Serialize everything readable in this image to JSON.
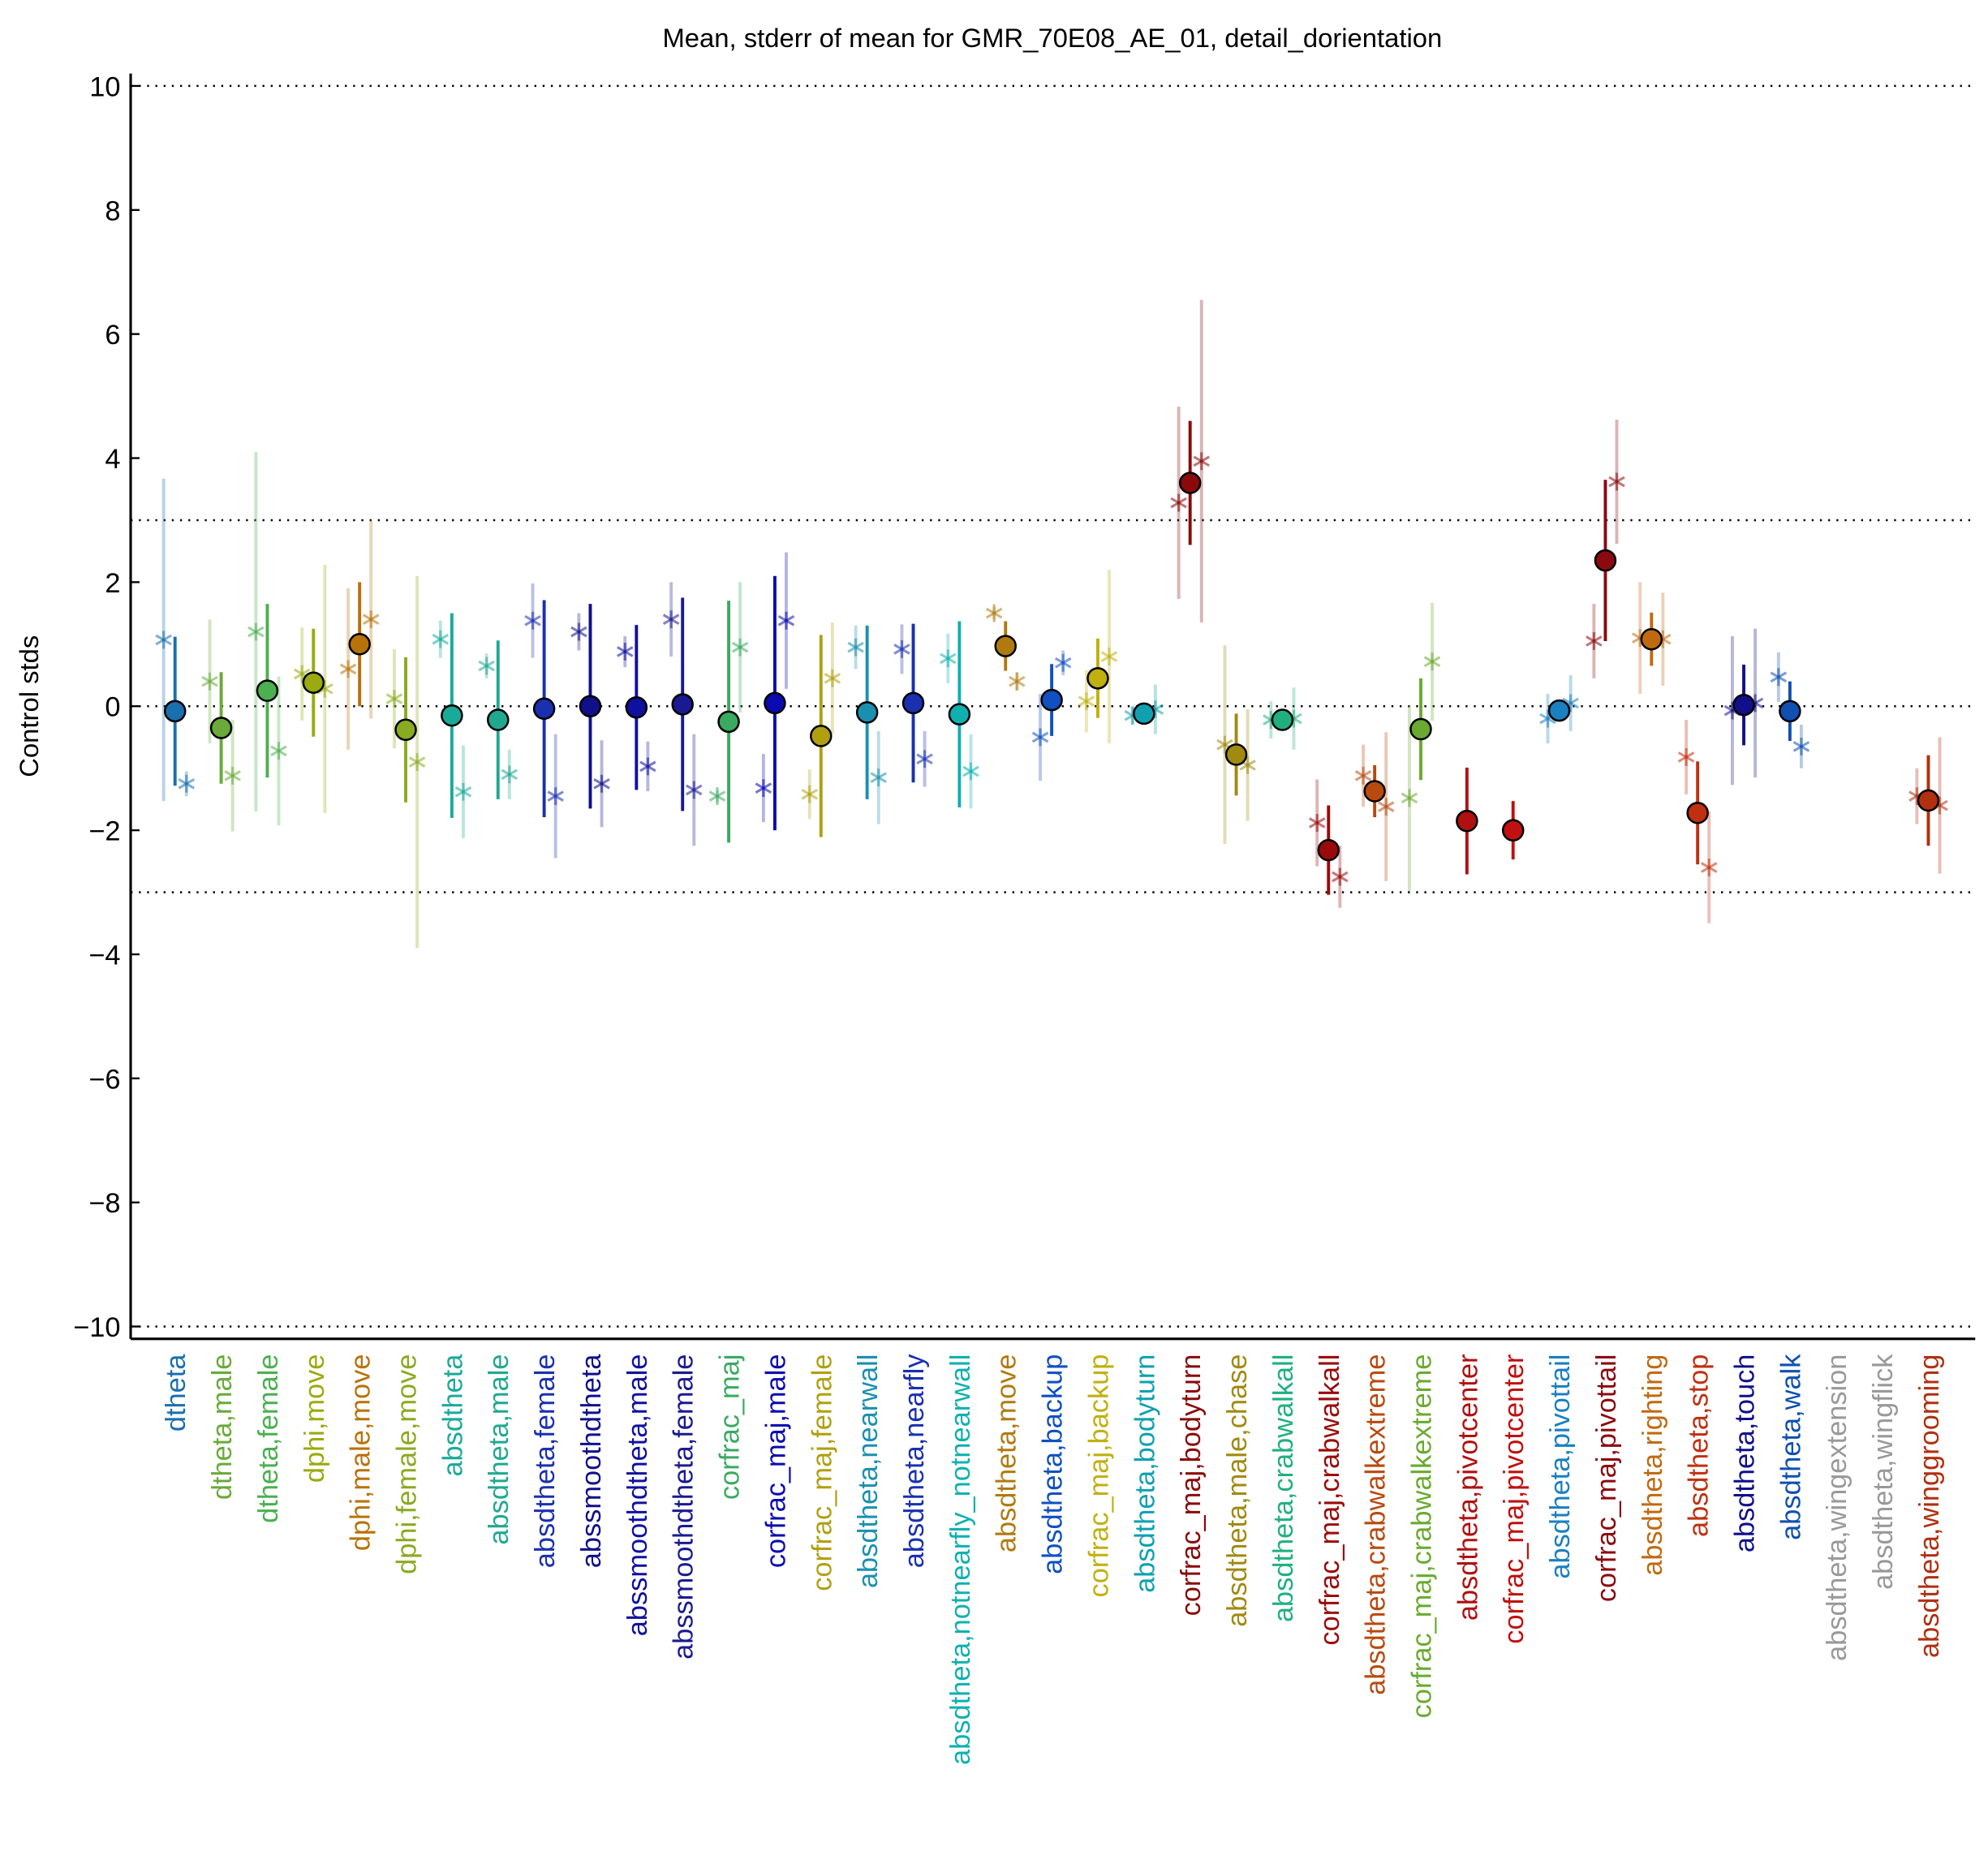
{
  "chart_data": {
    "type": "errorbar",
    "title": "Mean, stderr of mean for GMR_70E08_AE_01, detail_dorientation",
    "ylabel": "Control stds",
    "categories": [
      "dtheta",
      "dtheta,male",
      "dtheta,female",
      "dphi,move",
      "dphi,male,move",
      "dphi,female,move",
      "absdtheta",
      "absdtheta,male",
      "absdtheta,female",
      "abssmoothdtheta",
      "abssmoothdtheta,male",
      "abssmoothdtheta,female",
      "corfrac_maj",
      "corfrac_maj,male",
      "corfrac_maj,female",
      "absdtheta,nearwall",
      "absdtheta,nearfly",
      "absdtheta,notnearfly_notnearwall",
      "absdtheta,move",
      "absdtheta,backup",
      "corfrac_maj,backup",
      "absdtheta,bodyturn",
      "corfrac_maj,bodyturn",
      "absdtheta,male,chase",
      "absdtheta,crabwalkall",
      "corfrac_maj,crabwalkall",
      "absdtheta,crabwalkextreme",
      "corfrac_maj,crabwalkextreme",
      "absdtheta,pivotcenter",
      "corfrac_maj,pivotcenter",
      "absdtheta,pivottail",
      "corfrac_maj,pivottail",
      "absdtheta,righting",
      "absdtheta,stop",
      "absdtheta,touch",
      "absdtheta,walk",
      "absdtheta,wingextension",
      "absdtheta,wingflick",
      "absdtheta,winggrooming"
    ],
    "colors": [
      "#1a6faf",
      "#6aaa3a",
      "#4caf50",
      "#9aaa10",
      "#b8720a",
      "#8aaa20",
      "#1aaa98",
      "#20a890",
      "#1a30b0",
      "#10108a",
      "#1010a0",
      "#1a1a90",
      "#3aaa60",
      "#0a0ab0",
      "#b0a010",
      "#1a90b0",
      "#1a30b0",
      "#10b0b0",
      "#b07a10",
      "#1050c0",
      "#c0b010",
      "#10a0b0",
      "#8a0a0a",
      "#a08a10",
      "#20b080",
      "#9a0a0a",
      "#b84a10",
      "#6aaa30",
      "#b01010",
      "#c01010",
      "#1a80c0",
      "#8a0a10",
      "#c06a10",
      "#c03010",
      "#10108a",
      "#1050b0",
      "#999999",
      "#999999",
      "#b03010"
    ],
    "values": [
      -0.08,
      -0.35,
      0.25,
      0.38,
      1.0,
      -0.38,
      -0.15,
      -0.22,
      -0.04,
      0.0,
      -0.02,
      0.03,
      -0.25,
      0.05,
      -0.48,
      -0.1,
      0.05,
      -0.13,
      0.97,
      0.1,
      0.45,
      -0.12,
      3.6,
      -0.78,
      -0.22,
      -2.32,
      -1.37,
      -0.37,
      -1.85,
      -2.0,
      -0.07,
      2.35,
      1.08,
      -1.72,
      0.02,
      -0.08,
      null,
      null,
      -1.52
    ],
    "errors": [
      1.2,
      0.9,
      1.4,
      0.87,
      1.0,
      1.17,
      1.65,
      1.28,
      1.75,
      1.65,
      1.33,
      1.72,
      1.95,
      2.05,
      1.63,
      1.4,
      1.28,
      1.5,
      0.4,
      0.58,
      0.64,
      0.13,
      1.0,
      0.66,
      0.12,
      0.72,
      0.42,
      0.82,
      0.86,
      0.47,
      0.17,
      1.3,
      0.43,
      0.83,
      0.65,
      0.48,
      null,
      null,
      0.73
    ],
    "left_values": [
      1.07,
      0.4,
      1.2,
      0.52,
      0.6,
      0.12,
      1.08,
      0.65,
      1.38,
      1.2,
      0.88,
      1.4,
      -1.45,
      -1.32,
      -1.42,
      0.95,
      0.92,
      0.77,
      1.5,
      -0.5,
      0.08,
      -0.15,
      3.28,
      -0.62,
      -0.22,
      -1.88,
      -1.12,
      -1.48,
      null,
      null,
      -0.2,
      1.05,
      1.1,
      -0.82,
      -0.07,
      0.47,
      null,
      null,
      -1.45
    ],
    "left_errors": [
      2.6,
      1.0,
      2.9,
      0.75,
      1.3,
      0.8,
      0.3,
      0.2,
      0.6,
      0.3,
      0.25,
      0.6,
      0.1,
      0.55,
      0.4,
      0.35,
      0.4,
      0.4,
      0.1,
      0.7,
      0.5,
      0.15,
      1.55,
      1.6,
      0.3,
      0.7,
      0.5,
      1.5,
      null,
      null,
      0.4,
      0.6,
      0.9,
      0.6,
      1.2,
      0.4,
      null,
      null,
      0.45
    ],
    "right_values": [
      -1.25,
      -1.12,
      -0.72,
      0.28,
      1.4,
      -0.9,
      -1.38,
      -1.1,
      -1.45,
      -1.25,
      -0.97,
      -1.35,
      0.95,
      1.38,
      0.45,
      -1.15,
      -0.85,
      -1.05,
      0.4,
      0.7,
      0.8,
      -0.05,
      3.95,
      -0.95,
      -0.2,
      -2.75,
      -1.62,
      0.72,
      null,
      null,
      0.05,
      3.62,
      1.08,
      -2.6,
      0.05,
      -0.65,
      null,
      null,
      -1.6
    ],
    "right_errors": [
      0.2,
      0.9,
      1.2,
      2.0,
      1.6,
      3.0,
      0.75,
      0.4,
      1.0,
      0.7,
      0.4,
      0.9,
      1.05,
      1.1,
      0.9,
      0.75,
      0.45,
      0.6,
      0.15,
      0.2,
      1.4,
      0.4,
      2.6,
      0.9,
      0.5,
      0.5,
      1.2,
      0.95,
      null,
      null,
      0.45,
      1.0,
      0.75,
      0.9,
      1.2,
      0.35,
      null,
      null,
      1.1
    ],
    "ylim": [
      -10.2,
      10.2
    ],
    "yticks": [
      {
        "value": -10,
        "label": "−10"
      },
      {
        "value": -8,
        "label": "−8"
      },
      {
        "value": -6,
        "label": "−6"
      },
      {
        "value": -4,
        "label": "−4"
      },
      {
        "value": -2,
        "label": "−2"
      },
      0,
      2,
      4,
      6,
      8,
      10
    ],
    "hlines": [
      -10,
      -3,
      0,
      3,
      10
    ]
  }
}
